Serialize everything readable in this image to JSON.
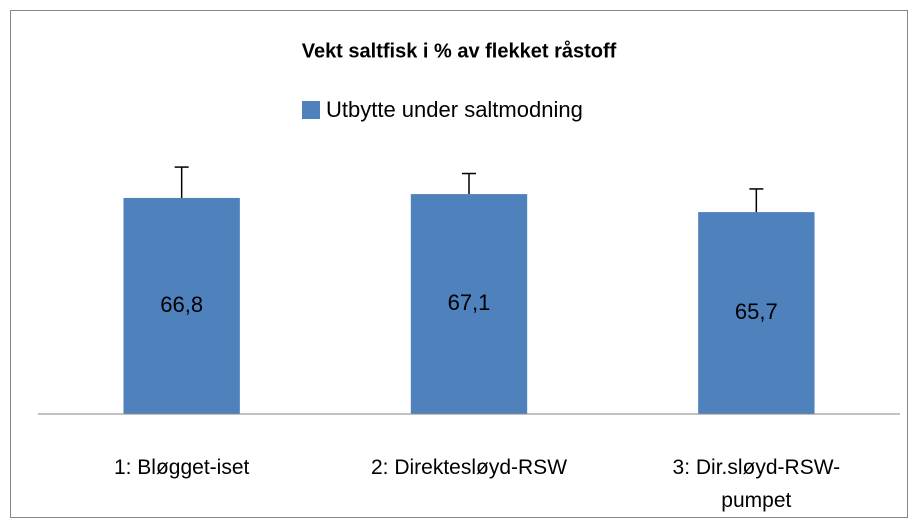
{
  "chart_data": {
    "type": "bar",
    "title": "Vekt saltfisk i % av flekket råstoff",
    "categories": [
      "1: Bløgget-iset",
      "2: Direktesløyd-RSW",
      "3: Dir.sløyd-RSW-pumpet"
    ],
    "series": [
      {
        "name": "Utbytte under saltmodning",
        "color": "#4f81bd",
        "values": [
          66.8,
          67.1,
          65.7
        ],
        "value_labels": [
          "66,8",
          "67,1",
          "65,7"
        ],
        "errors": [
          2.4,
          1.6,
          1.8
        ]
      }
    ],
    "ylim": [
      50,
      70
    ],
    "legend": "top"
  }
}
